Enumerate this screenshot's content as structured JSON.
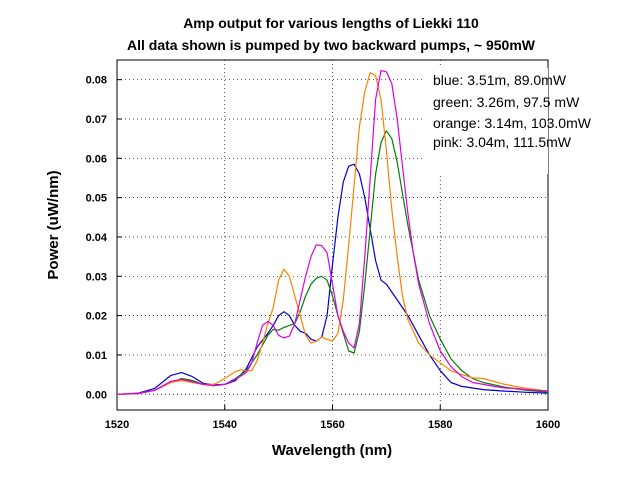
{
  "chart_data": {
    "type": "line",
    "title": "Amp output for various lengths of Liekki 110",
    "subtitle": "All data shown is pumped by two backward pumps, ~ 950mW",
    "xlabel": "Wavelength (nm)",
    "ylabel": "Power (uW/nm)",
    "xlim": [
      1520,
      1600
    ],
    "ylim": [
      -0.004,
      0.085
    ],
    "x_ticks": [
      "1520",
      "1540",
      "1560",
      "1580",
      "1600"
    ],
    "y_ticks": [
      "0.00",
      "0.01",
      "0.02",
      "0.03",
      "0.04",
      "0.05",
      "0.06",
      "0.07",
      "0.08"
    ],
    "grid": true,
    "legend_placement": "top-right",
    "legend_lines": [
      "blue: 3.51m, 89.0mW",
      "green: 3.26m, 97.5 mW",
      "orange: 3.14m, 103.0mW",
      "pink: 3.04m, 111.5mW"
    ],
    "series": [
      {
        "color": "#0000cc",
        "points": [
          [
            1520,
            0.0
          ],
          [
            1524,
            0.0003
          ],
          [
            1527,
            0.0015
          ],
          [
            1530,
            0.0048
          ],
          [
            1532,
            0.0055
          ],
          [
            1534,
            0.0045
          ],
          [
            1536,
            0.0028
          ],
          [
            1538,
            0.0024
          ],
          [
            1540,
            0.0025
          ],
          [
            1542,
            0.0035
          ],
          [
            1544,
            0.0065
          ],
          [
            1546,
            0.012
          ],
          [
            1548,
            0.0155
          ],
          [
            1549,
            0.0175
          ],
          [
            1550,
            0.02
          ],
          [
            1551,
            0.021
          ],
          [
            1552,
            0.02
          ],
          [
            1553,
            0.0175
          ],
          [
            1554,
            0.016
          ],
          [
            1555,
            0.0155
          ],
          [
            1556,
            0.014
          ],
          [
            1557,
            0.0135
          ],
          [
            1558,
            0.0145
          ],
          [
            1559,
            0.02
          ],
          [
            1560,
            0.033
          ],
          [
            1561,
            0.045
          ],
          [
            1562,
            0.054
          ],
          [
            1563,
            0.058
          ],
          [
            1564,
            0.0585
          ],
          [
            1565,
            0.056
          ],
          [
            1566,
            0.05
          ],
          [
            1567,
            0.042
          ],
          [
            1568,
            0.034
          ],
          [
            1569,
            0.029
          ],
          [
            1570,
            0.028
          ],
          [
            1572,
            0.024
          ],
          [
            1574,
            0.02
          ],
          [
            1576,
            0.015
          ],
          [
            1578,
            0.01
          ],
          [
            1580,
            0.006
          ],
          [
            1582,
            0.003
          ],
          [
            1584,
            0.002
          ],
          [
            1588,
            0.0012
          ],
          [
            1592,
            0.0008
          ],
          [
            1596,
            0.0005
          ],
          [
            1600,
            0.0003
          ]
        ]
      },
      {
        "color": "#008000",
        "points": [
          [
            1520,
            0.0
          ],
          [
            1524,
            0.0002
          ],
          [
            1527,
            0.001
          ],
          [
            1530,
            0.003
          ],
          [
            1532,
            0.004
          ],
          [
            1534,
            0.0035
          ],
          [
            1536,
            0.0025
          ],
          [
            1538,
            0.0022
          ],
          [
            1540,
            0.0025
          ],
          [
            1542,
            0.004
          ],
          [
            1544,
            0.006
          ],
          [
            1546,
            0.01
          ],
          [
            1548,
            0.015
          ],
          [
            1549,
            0.0165
          ],
          [
            1550,
            0.0163
          ],
          [
            1551,
            0.017
          ],
          [
            1552,
            0.0175
          ],
          [
            1553,
            0.018
          ],
          [
            1554,
            0.021
          ],
          [
            1555,
            0.025
          ],
          [
            1556,
            0.028
          ],
          [
            1557,
            0.0295
          ],
          [
            1558,
            0.03
          ],
          [
            1559,
            0.029
          ],
          [
            1560,
            0.025
          ],
          [
            1561,
            0.02
          ],
          [
            1562,
            0.0155
          ],
          [
            1563,
            0.011
          ],
          [
            1564,
            0.0105
          ],
          [
            1565,
            0.016
          ],
          [
            1566,
            0.028
          ],
          [
            1567,
            0.042
          ],
          [
            1568,
            0.056
          ],
          [
            1569,
            0.064
          ],
          [
            1570,
            0.067
          ],
          [
            1571,
            0.065
          ],
          [
            1572,
            0.059
          ],
          [
            1573,
            0.051
          ],
          [
            1574,
            0.043
          ],
          [
            1575,
            0.036
          ],
          [
            1576,
            0.029
          ],
          [
            1578,
            0.02
          ],
          [
            1580,
            0.014
          ],
          [
            1582,
            0.009
          ],
          [
            1584,
            0.006
          ],
          [
            1586,
            0.004
          ],
          [
            1588,
            0.003
          ],
          [
            1592,
            0.0018
          ],
          [
            1596,
            0.001
          ],
          [
            1600,
            0.0005
          ]
        ]
      },
      {
        "color": "#ff8000",
        "points": [
          [
            1520,
            0.0
          ],
          [
            1524,
            0.0002
          ],
          [
            1527,
            0.001
          ],
          [
            1530,
            0.003
          ],
          [
            1532,
            0.0035
          ],
          [
            1534,
            0.003
          ],
          [
            1536,
            0.0025
          ],
          [
            1538,
            0.0025
          ],
          [
            1540,
            0.004
          ],
          [
            1542,
            0.0058
          ],
          [
            1543,
            0.0062
          ],
          [
            1544,
            0.006
          ],
          [
            1545,
            0.006
          ],
          [
            1546,
            0.0085
          ],
          [
            1547,
            0.013
          ],
          [
            1548,
            0.018
          ],
          [
            1549,
            0.022
          ],
          [
            1550,
            0.029
          ],
          [
            1551,
            0.0318
          ],
          [
            1552,
            0.03
          ],
          [
            1553,
            0.025
          ],
          [
            1554,
            0.02
          ],
          [
            1555,
            0.015
          ],
          [
            1556,
            0.013
          ],
          [
            1557,
            0.0135
          ],
          [
            1558,
            0.0145
          ],
          [
            1559,
            0.014
          ],
          [
            1560,
            0.0135
          ],
          [
            1561,
            0.0155
          ],
          [
            1562,
            0.024
          ],
          [
            1563,
            0.038
          ],
          [
            1564,
            0.053
          ],
          [
            1565,
            0.068
          ],
          [
            1566,
            0.077
          ],
          [
            1567,
            0.0818
          ],
          [
            1568,
            0.081
          ],
          [
            1569,
            0.075
          ],
          [
            1570,
            0.062
          ],
          [
            1571,
            0.047
          ],
          [
            1572,
            0.035
          ],
          [
            1573,
            0.025
          ],
          [
            1574,
            0.019
          ],
          [
            1576,
            0.013
          ],
          [
            1578,
            0.01
          ],
          [
            1580,
            0.008
          ],
          [
            1582,
            0.006
          ],
          [
            1584,
            0.005
          ],
          [
            1586,
            0.0042
          ],
          [
            1588,
            0.004
          ],
          [
            1592,
            0.0025
          ],
          [
            1596,
            0.0015
          ],
          [
            1600,
            0.0008
          ]
        ]
      },
      {
        "color": "#e000e0",
        "points": [
          [
            1520,
            0.0
          ],
          [
            1524,
            0.0002
          ],
          [
            1527,
            0.001
          ],
          [
            1530,
            0.0033
          ],
          [
            1532,
            0.0038
          ],
          [
            1534,
            0.0032
          ],
          [
            1536,
            0.0025
          ],
          [
            1538,
            0.0022
          ],
          [
            1540,
            0.0025
          ],
          [
            1542,
            0.0038
          ],
          [
            1544,
            0.0055
          ],
          [
            1545,
            0.008
          ],
          [
            1546,
            0.013
          ],
          [
            1547,
            0.0175
          ],
          [
            1548,
            0.0185
          ],
          [
            1549,
            0.0175
          ],
          [
            1550,
            0.015
          ],
          [
            1551,
            0.0143
          ],
          [
            1552,
            0.0148
          ],
          [
            1553,
            0.018
          ],
          [
            1554,
            0.024
          ],
          [
            1555,
            0.03
          ],
          [
            1556,
            0.035
          ],
          [
            1557,
            0.038
          ],
          [
            1558,
            0.0378
          ],
          [
            1559,
            0.036
          ],
          [
            1560,
            0.028
          ],
          [
            1561,
            0.02
          ],
          [
            1562,
            0.016
          ],
          [
            1563,
            0.013
          ],
          [
            1564,
            0.0118
          ],
          [
            1565,
            0.018
          ],
          [
            1566,
            0.035
          ],
          [
            1567,
            0.055
          ],
          [
            1568,
            0.075
          ],
          [
            1569,
            0.0823
          ],
          [
            1570,
            0.082
          ],
          [
            1571,
            0.079
          ],
          [
            1572,
            0.07
          ],
          [
            1573,
            0.058
          ],
          [
            1574,
            0.046
          ],
          [
            1575,
            0.036
          ],
          [
            1576,
            0.028
          ],
          [
            1578,
            0.018
          ],
          [
            1580,
            0.011
          ],
          [
            1582,
            0.007
          ],
          [
            1584,
            0.0045
          ],
          [
            1586,
            0.003
          ],
          [
            1588,
            0.0025
          ],
          [
            1590,
            0.002
          ],
          [
            1592,
            0.0016
          ],
          [
            1594,
            0.0015
          ],
          [
            1596,
            0.0012
          ],
          [
            1600,
            0.0008
          ]
        ]
      }
    ]
  }
}
